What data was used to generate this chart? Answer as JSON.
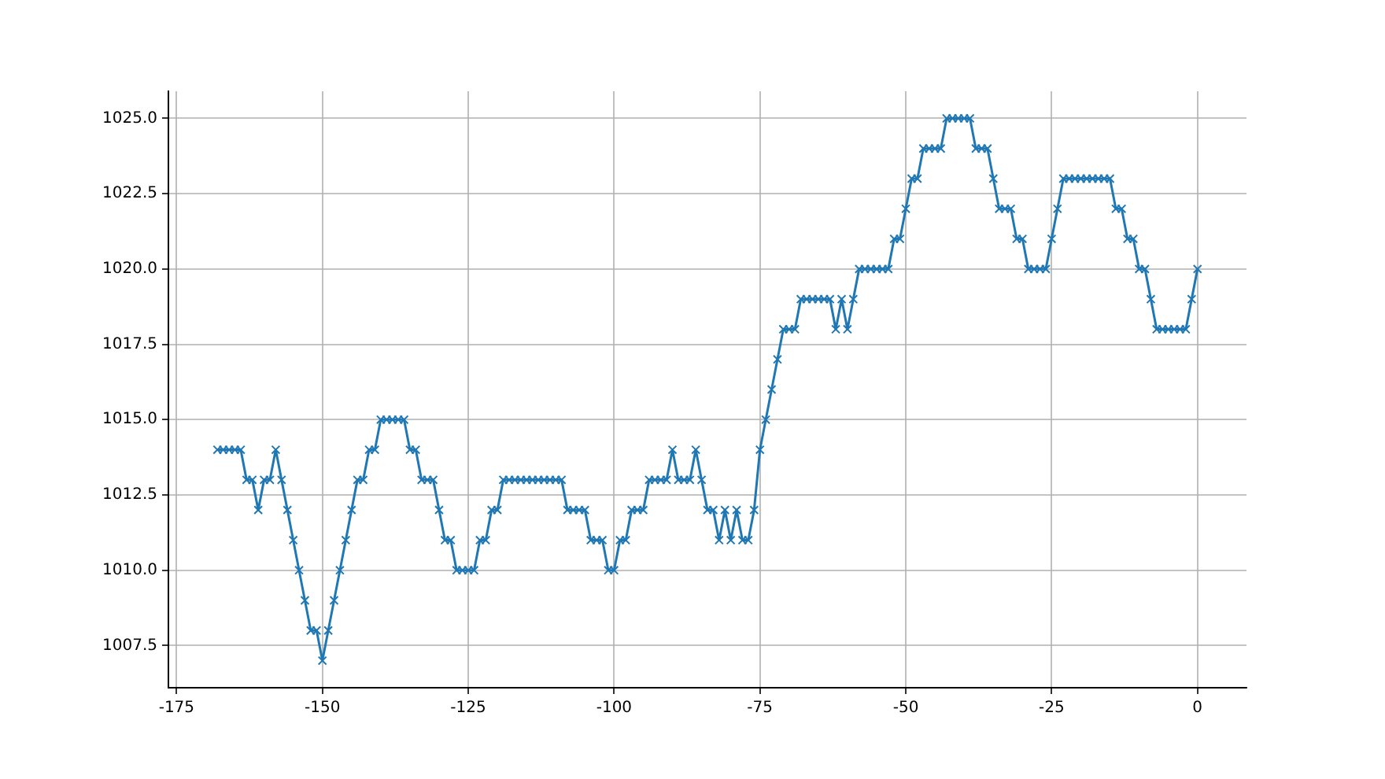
{
  "chart_data": {
    "type": "line",
    "x": [
      -168,
      -167,
      -166,
      -165,
      -164,
      -163,
      -162,
      -161,
      -160,
      -159,
      -158,
      -157,
      -156,
      -155,
      -154,
      -153,
      -152,
      -151,
      -150,
      -149,
      -148,
      -147,
      -146,
      -145,
      -144,
      -143,
      -142,
      -141,
      -140,
      -139,
      -138,
      -137,
      -136,
      -135,
      -134,
      -133,
      -132,
      -131,
      -130,
      -129,
      -128,
      -127,
      -126,
      -125,
      -124,
      -123,
      -122,
      -121,
      -120,
      -119,
      -118,
      -117,
      -116,
      -115,
      -114,
      -113,
      -112,
      -111,
      -110,
      -109,
      -108,
      -107,
      -106,
      -105,
      -104,
      -103,
      -102,
      -101,
      -100,
      -99,
      -98,
      -97,
      -96,
      -95,
      -94,
      -93,
      -92,
      -91,
      -90,
      -89,
      -88,
      -87,
      -86,
      -85,
      -84,
      -83,
      -82,
      -81,
      -80,
      -79,
      -78,
      -77,
      -76,
      -75,
      -74,
      -73,
      -72,
      -71,
      -70,
      -69,
      -68,
      -67,
      -66,
      -65,
      -64,
      -63,
      -62,
      -61,
      -60,
      -59,
      -58,
      -57,
      -56,
      -55,
      -54,
      -53,
      -52,
      -51,
      -50,
      -49,
      -48,
      -47,
      -46,
      -45,
      -44,
      -43,
      -42,
      -41,
      -40,
      -39,
      -38,
      -37,
      -36,
      -35,
      -34,
      -33,
      -32,
      -31,
      -30,
      -29,
      -28,
      -27,
      -26,
      -25,
      -24,
      -23,
      -22,
      -21,
      -20,
      -19,
      -18,
      -17,
      -16,
      -15,
      -14,
      -13,
      -12,
      -11,
      -10,
      -9,
      -8,
      -7,
      -6,
      -5,
      -4,
      -3,
      -2,
      -1,
      0
    ],
    "series": [
      {
        "color": "#1f77b4",
        "values": [
          1014,
          1014,
          1014,
          1014,
          1014,
          1013,
          1013,
          1012,
          1013,
          1013,
          1014,
          1013,
          1012,
          1011,
          1010,
          1009,
          1008,
          1008,
          1007,
          1008,
          1009,
          1010,
          1011,
          1012,
          1013,
          1013,
          1014,
          1014,
          1015,
          1015,
          1015,
          1015,
          1015,
          1014,
          1014,
          1013,
          1013,
          1013,
          1012,
          1011,
          1011,
          1010,
          1010,
          1010,
          1010,
          1011,
          1011,
          1012,
          1012,
          1013,
          1013,
          1013,
          1013,
          1013,
          1013,
          1013,
          1013,
          1013,
          1013,
          1013,
          1012,
          1012,
          1012,
          1012,
          1011,
          1011,
          1011,
          1010,
          1010,
          1011,
          1011,
          1012,
          1012,
          1012,
          1013,
          1013,
          1013,
          1013,
          1014,
          1013,
          1013,
          1013,
          1014,
          1013,
          1012,
          1012,
          1011,
          1012,
          1011,
          1012,
          1011,
          1011,
          1012,
          1014,
          1015,
          1016,
          1017,
          1018,
          1018,
          1018,
          1019,
          1019,
          1019,
          1019,
          1019,
          1019,
          1018,
          1019,
          1018,
          1019,
          1020,
          1020,
          1020,
          1020,
          1020,
          1020,
          1021,
          1021,
          1022,
          1023,
          1023,
          1024,
          1024,
          1024,
          1024,
          1025,
          1025,
          1025,
          1025,
          1025,
          1024,
          1024,
          1024,
          1023,
          1022,
          1022,
          1022,
          1021,
          1021,
          1020,
          1020,
          1020,
          1020,
          1021,
          1022,
          1023,
          1023,
          1023,
          1023,
          1023,
          1023,
          1023,
          1023,
          1023,
          1022,
          1022,
          1021,
          1021,
          1020,
          1020,
          1019,
          1018,
          1018,
          1018,
          1018,
          1018,
          1018,
          1019,
          1020
        ]
      }
    ],
    "xlim": [
      -176.4,
      8.4
    ],
    "xticks": [
      -175,
      -150,
      -125,
      -100,
      -75,
      -50,
      -25,
      0
    ],
    "ylim": [
      1006.1,
      1025.9
    ],
    "yticks": [
      {
        "value": 1007.5,
        "label": "1007.5"
      },
      {
        "value": 1010,
        "label": "1010.0"
      },
      {
        "value": 1012.5,
        "label": "1012.5"
      },
      {
        "value": 1015,
        "label": "1015.0"
      },
      {
        "value": 1017.5,
        "label": "1017.5"
      },
      {
        "value": 1020,
        "label": "1020.0"
      },
      {
        "value": 1022.5,
        "label": "1022.5"
      },
      {
        "value": 1025,
        "label": "1025.0"
      }
    ],
    "grid": true,
    "marker": "cross",
    "line_style": "solid"
  }
}
